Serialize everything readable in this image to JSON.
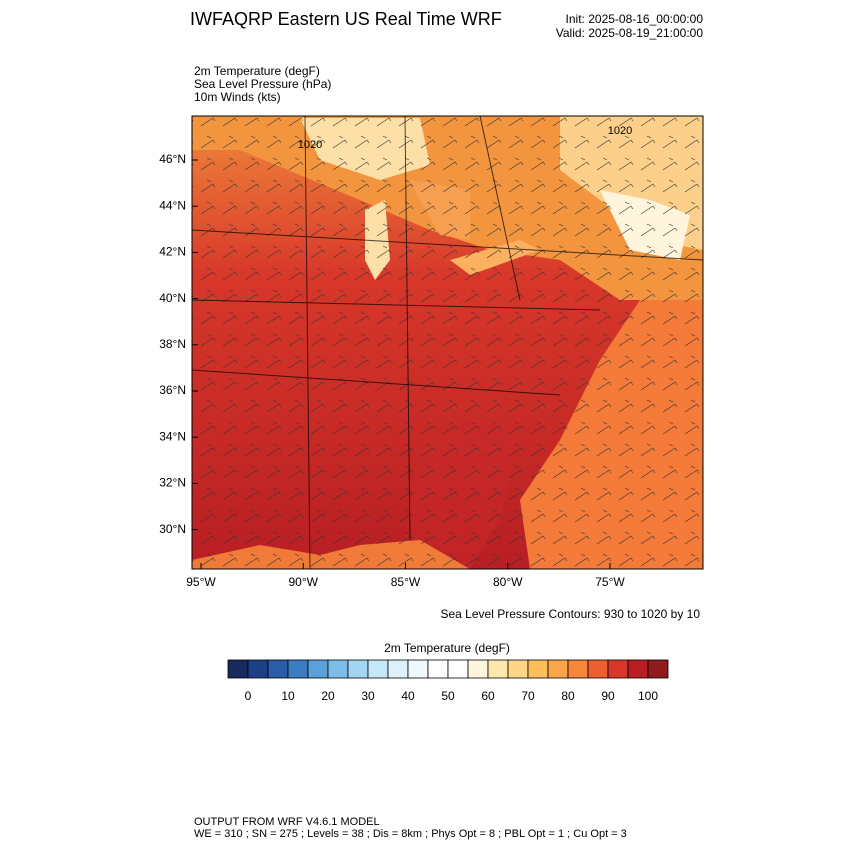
{
  "header": {
    "title": "IWFAQRP Eastern US Real Time WRF",
    "init": "Init: 2025-08-16_00:00:00",
    "valid": "Valid: 2025-08-19_21:00:00"
  },
  "fields": [
    "2m Temperature   (degF)",
    "Sea Level Pressure   (hPa)",
    "10m Winds   (kts)"
  ],
  "map": {
    "lat_ticks": [
      {
        "value": 46,
        "label": "46°N"
      },
      {
        "value": 44,
        "label": "44°N"
      },
      {
        "value": 42,
        "label": "42°N"
      },
      {
        "value": 40,
        "label": "40°N"
      },
      {
        "value": 38,
        "label": "38°N"
      },
      {
        "value": 36,
        "label": "36°N"
      },
      {
        "value": 34,
        "label": "34°N"
      },
      {
        "value": 32,
        "label": "32°N"
      },
      {
        "value": 30,
        "label": "30°N"
      }
    ],
    "lon_ticks": [
      {
        "value": -95,
        "label": "95°W"
      },
      {
        "value": -90,
        "label": "90°W"
      },
      {
        "value": -85,
        "label": "85°W"
      },
      {
        "value": -80,
        "label": "80°W"
      },
      {
        "value": -75,
        "label": "75°W"
      }
    ],
    "contour_labels": [
      "1020",
      "1020"
    ]
  },
  "contour_note": "Sea Level Pressure Contours: 930 to 1020 by 10",
  "colorbar": {
    "title": "2m Temperature  (degF)",
    "levels": [
      0,
      5,
      10,
      15,
      20,
      25,
      30,
      35,
      40,
      45,
      50,
      55,
      60,
      65,
      70,
      75,
      80,
      85,
      90,
      95,
      100
    ],
    "colors": [
      "#172a5e",
      "#1d3f86",
      "#2a5ca8",
      "#3b7dc3",
      "#5aa0d9",
      "#7cbde9",
      "#a4d6f4",
      "#c5e7f9",
      "#ddf1fb",
      "#eef8fd",
      "#ffffff",
      "#ffffff",
      "#fff5dc",
      "#ffe8b0",
      "#ffd58a",
      "#fdbf5a",
      "#fca64a",
      "#f7853a",
      "#ec5f2e",
      "#d8382a",
      "#b81e23",
      "#901a1c"
    ],
    "ticks": [
      0,
      10,
      20,
      30,
      40,
      50,
      60,
      70,
      80,
      90,
      100
    ]
  },
  "footer": [
    "OUTPUT FROM WRF V4.6.1 MODEL",
    "WE = 310 ; SN = 275 ; Levels = 38 ; Dis = 8km ; Phys Opt = 8 ; PBL Opt = 1 ; Cu Opt = 3"
  ]
}
